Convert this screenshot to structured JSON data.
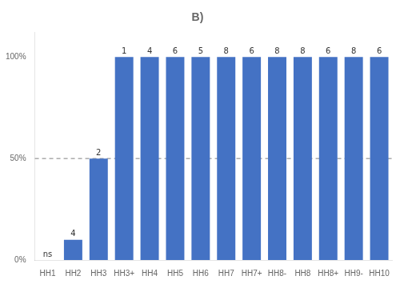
{
  "chart_data": {
    "type": "bar",
    "title": "B)",
    "categories": [
      "HH1",
      "HH2",
      "HH3",
      "HH3+",
      "HH4",
      "HH5",
      "HH6",
      "HH7",
      "HH7+",
      "HH8-",
      "HH8",
      "HH8+",
      "HH9-",
      "HH10"
    ],
    "values": [
      0,
      10,
      50,
      100,
      100,
      100,
      100,
      100,
      100,
      100,
      100,
      100,
      100,
      100
    ],
    "color": "#4472C4",
    "ylim": [
      0,
      112
    ],
    "yticks": [
      {
        "value": 0,
        "label": "0%"
      },
      {
        "value": 50,
        "label": "50%"
      },
      {
        "value": 100,
        "label": "100%"
      }
    ],
    "hline": 50,
    "annotations": [
      {
        "x": "HH1",
        "y": 0,
        "text": "ns"
      },
      {
        "x": "HH2",
        "y": 10,
        "text": "4"
      },
      {
        "x": "HH3",
        "y": 50,
        "text": "2"
      },
      {
        "x": "HH3+",
        "y": 100,
        "text": "1"
      },
      {
        "x": "HH4",
        "y": 100,
        "text": "4"
      },
      {
        "x": "HH5",
        "y": 100,
        "text": "6"
      },
      {
        "x": "HH6",
        "y": 100,
        "text": "5"
      },
      {
        "x": "HH7",
        "y": 100,
        "text": "8"
      },
      {
        "x": "HH7+",
        "y": 100,
        "text": "6"
      },
      {
        "x": "HH8-",
        "y": 100,
        "text": "8"
      },
      {
        "x": "HH8",
        "y": 100,
        "text": "8"
      },
      {
        "x": "HH8+",
        "y": 100,
        "text": "6"
      },
      {
        "x": "HH9-",
        "y": 100,
        "text": "8"
      },
      {
        "x": "HH10",
        "y": 100,
        "text": "6"
      }
    ],
    "grid": false
  }
}
